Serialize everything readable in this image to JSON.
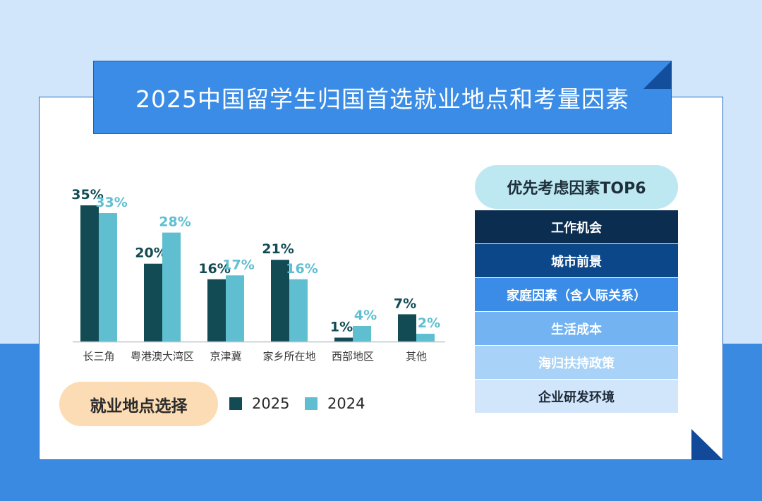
{
  "title": "2025中国留学生归国首选就业地点和考量因素",
  "location_pill": "就业地点选择",
  "factors_pill": "优先考虑因素TOP6",
  "colors": {
    "s2025": "#134b54",
    "s2024": "#5fbfd0"
  },
  "chart_data": {
    "type": "bar",
    "title": "就业地点选择",
    "categories": [
      "长三角",
      "粤港澳大湾区",
      "京津冀",
      "家乡所在地",
      "西部地区",
      "其他"
    ],
    "series": [
      {
        "name": "2025",
        "values": [
          35,
          20,
          16,
          21,
          1,
          7
        ]
      },
      {
        "name": "2024",
        "values": [
          33,
          28,
          17,
          16,
          4,
          2
        ]
      }
    ],
    "unit": "%",
    "ylim": [
      0,
      35
    ],
    "xlabel": "",
    "ylabel": "",
    "grid": false
  },
  "factors": [
    {
      "label": "工作机会",
      "bg": "#0b2d50",
      "fg": "#ffffff"
    },
    {
      "label": "城市前景",
      "bg": "#0c4889",
      "fg": "#ffffff"
    },
    {
      "label": "家庭因素（含人际关系）",
      "bg": "#3a8ce6",
      "fg": "#ffffff"
    },
    {
      "label": "生活成本",
      "bg": "#73b3f2",
      "fg": "#ffffff"
    },
    {
      "label": "海归扶持政策",
      "bg": "#a8d2f7",
      "fg": "#ffffff"
    },
    {
      "label": "企业研发环境",
      "bg": "#d2e6fb",
      "fg": "#1e2a38"
    }
  ]
}
